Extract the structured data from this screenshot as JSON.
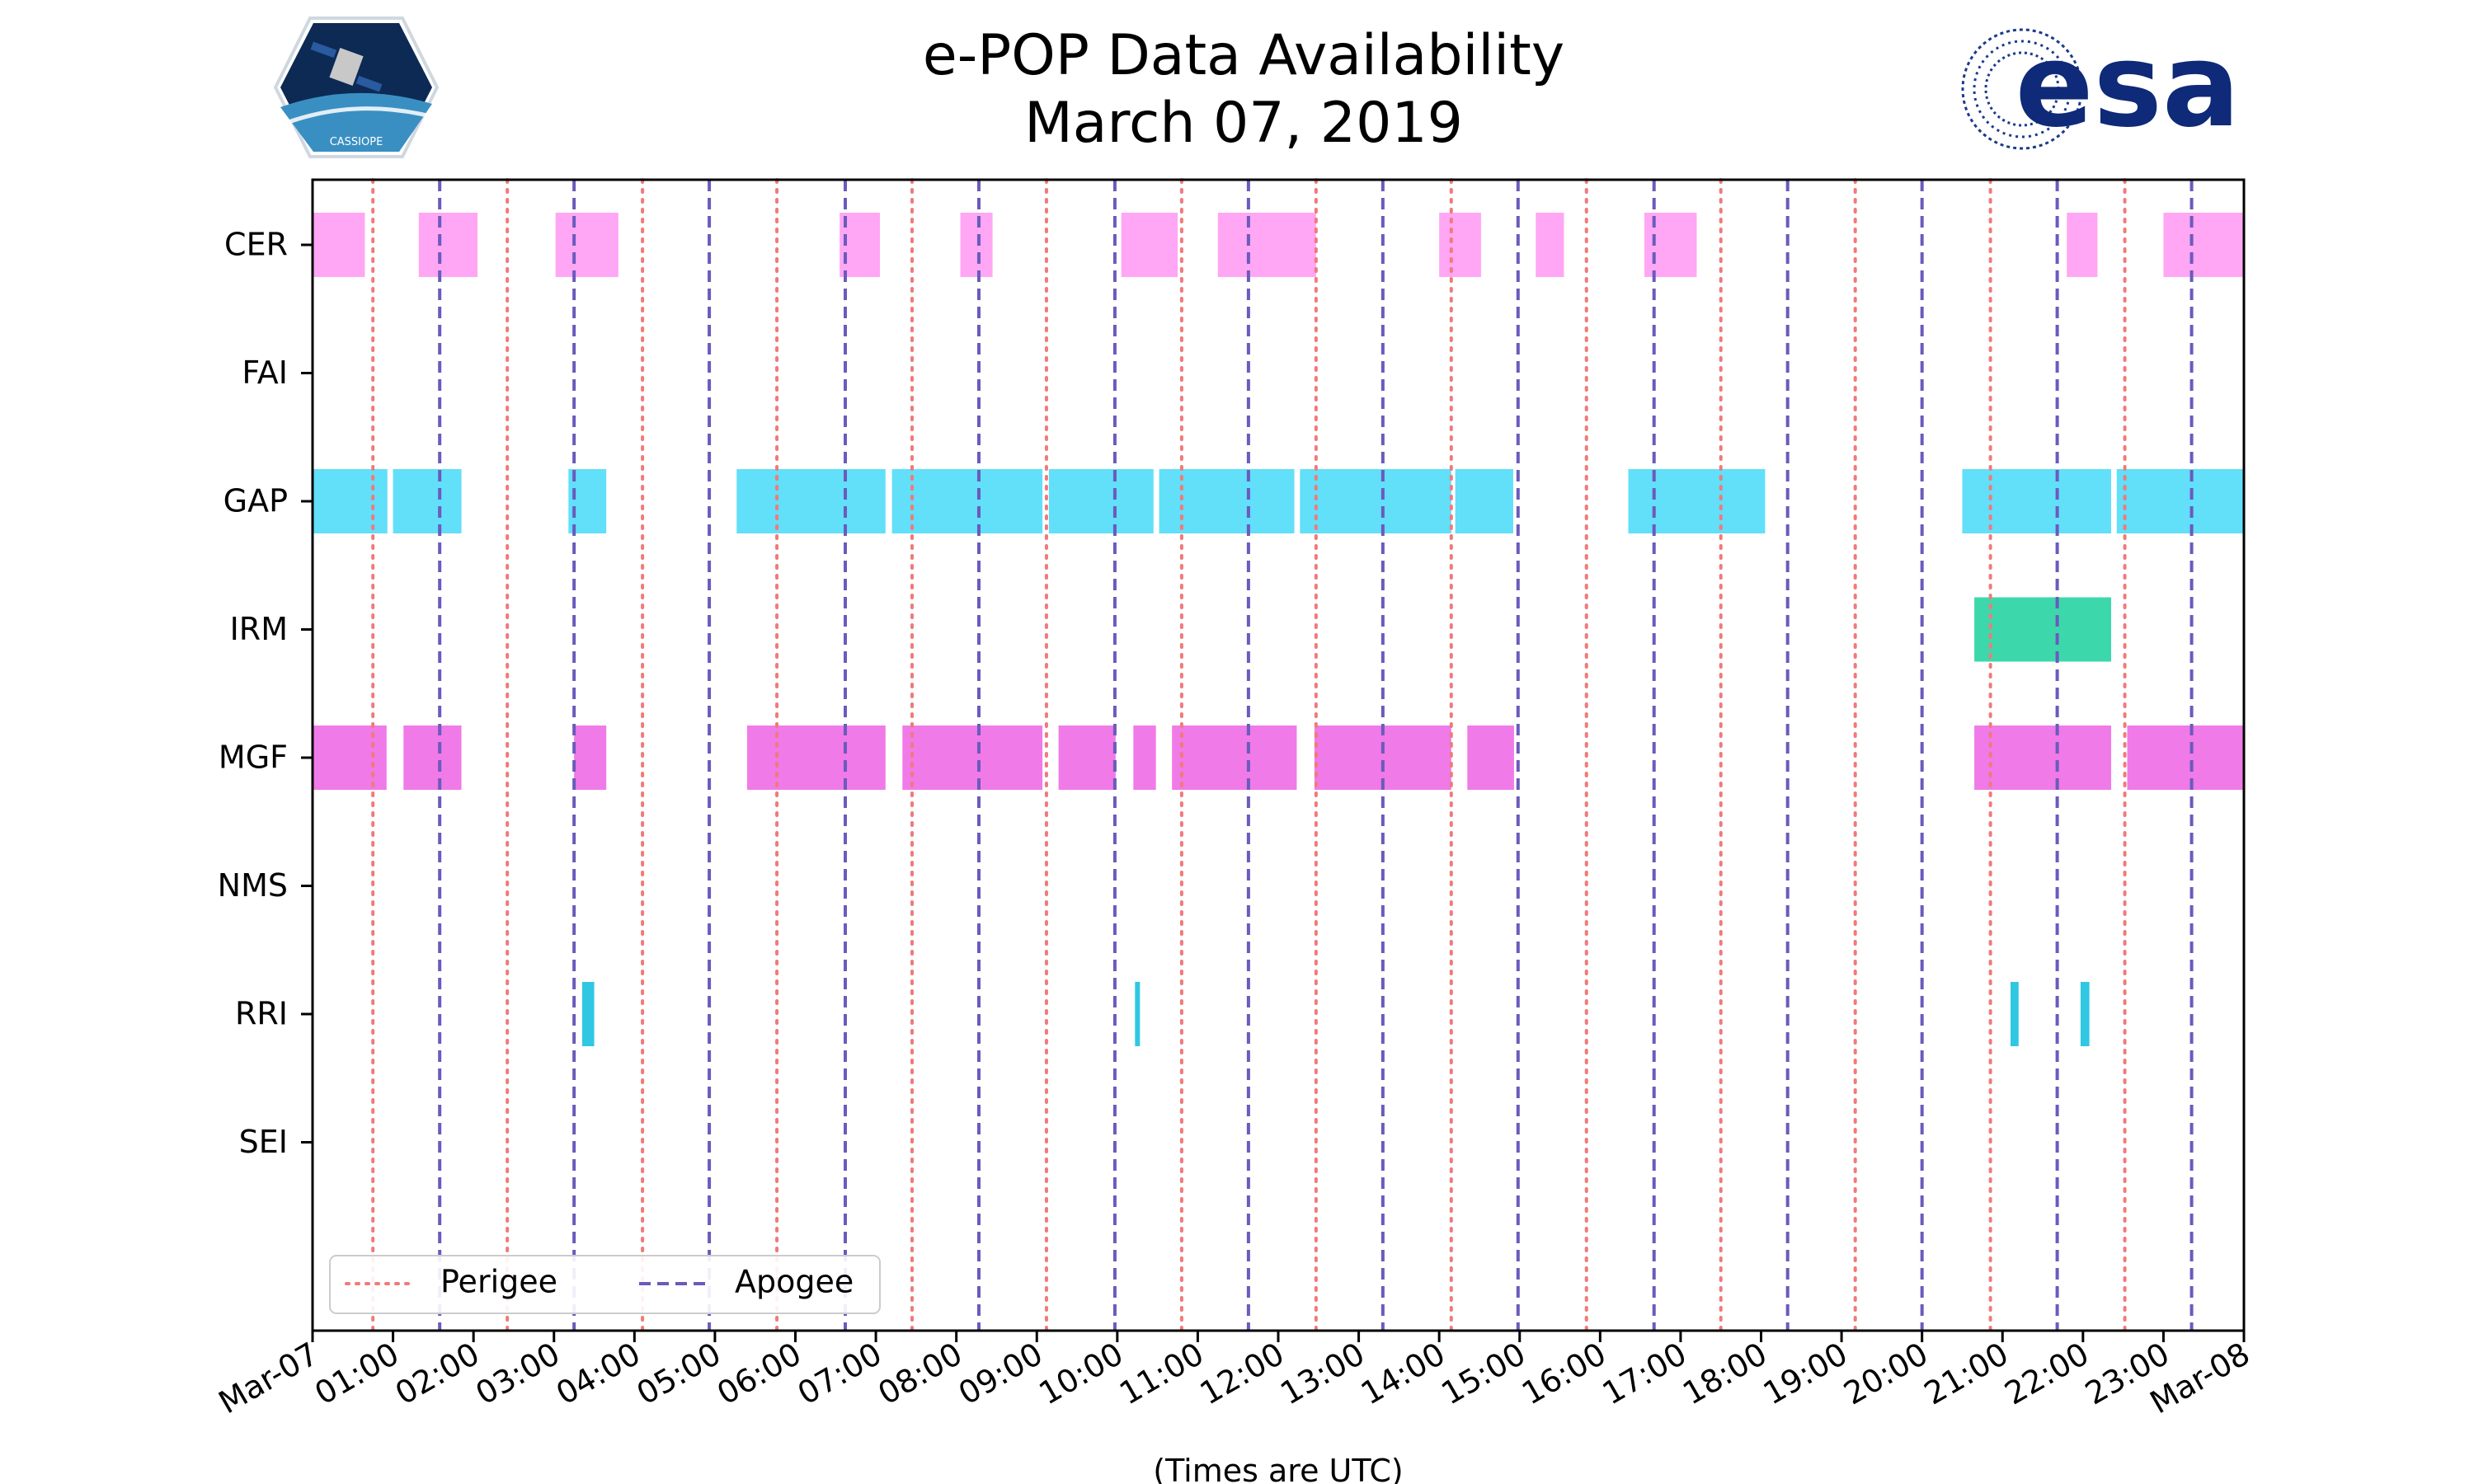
{
  "chart_data": {
    "type": "timeline",
    "title": [
      "e-POP Data Availability",
      "March 07, 2019"
    ],
    "xlabel": "(Times are UTC)",
    "xlim_hours": [
      0,
      24
    ],
    "xtick_labels": [
      "Mar-07",
      "01:00",
      "02:00",
      "03:00",
      "04:00",
      "05:00",
      "06:00",
      "07:00",
      "08:00",
      "09:00",
      "10:00",
      "11:00",
      "12:00",
      "13:00",
      "14:00",
      "15:00",
      "16:00",
      "17:00",
      "18:00",
      "19:00",
      "20:00",
      "21:00",
      "22:00",
      "23:00",
      "Mar-08"
    ],
    "instruments": [
      "CER",
      "FAI",
      "GAP",
      "IRM",
      "MGF",
      "NMS",
      "RRI",
      "SEI"
    ],
    "colors": {
      "CER": "#ffa6f4",
      "GAP": "#62dff9",
      "IRM": "#3cd8ab",
      "MGF": "#f07ae7",
      "RRI": "#30c7e3",
      "perigee": "#f07a7a",
      "apogee": "#6a5bbd"
    },
    "intervals": {
      "CER": [
        [
          0.0,
          0.65
        ],
        [
          1.32,
          2.05
        ],
        [
          3.02,
          3.8
        ],
        [
          6.55,
          7.05
        ],
        [
          8.05,
          8.45
        ],
        [
          10.05,
          10.75
        ],
        [
          11.25,
          12.47
        ],
        [
          14.0,
          14.52
        ],
        [
          15.2,
          15.55
        ],
        [
          16.55,
          17.2
        ],
        [
          21.8,
          22.18
        ],
        [
          23.0,
          24.0
        ]
      ],
      "FAI": [],
      "GAP": [
        [
          0.0,
          0.93
        ],
        [
          1.0,
          1.85
        ],
        [
          3.18,
          3.65
        ],
        [
          5.27,
          7.12
        ],
        [
          7.2,
          9.07
        ],
        [
          9.15,
          10.45
        ],
        [
          10.52,
          12.2
        ],
        [
          12.27,
          14.15
        ],
        [
          14.2,
          14.92
        ],
        [
          16.35,
          18.05
        ],
        [
          20.5,
          22.35
        ],
        [
          22.42,
          24.0
        ]
      ],
      "IRM": [
        [
          20.65,
          22.35
        ]
      ],
      "MGF": [
        [
          0.0,
          0.92
        ],
        [
          1.13,
          1.85
        ],
        [
          3.25,
          3.65
        ],
        [
          5.4,
          7.12
        ],
        [
          7.33,
          9.07
        ],
        [
          9.27,
          9.98
        ],
        [
          10.2,
          10.48
        ],
        [
          10.68,
          12.23
        ],
        [
          12.45,
          14.15
        ],
        [
          14.35,
          14.93
        ],
        [
          20.65,
          22.35
        ],
        [
          22.55,
          24.0
        ]
      ],
      "NMS": [],
      "RRI": [
        [
          3.35,
          3.5
        ],
        [
          10.22,
          10.28
        ],
        [
          21.1,
          21.2
        ],
        [
          21.97,
          22.08
        ]
      ],
      "SEI": []
    },
    "perigee_hours": [
      0.75,
      2.42,
      4.1,
      5.77,
      7.45,
      9.12,
      10.8,
      12.47,
      14.15,
      15.83,
      17.5,
      19.17,
      20.85,
      22.52
    ],
    "apogee_hours": [
      1.58,
      3.25,
      4.93,
      6.62,
      8.28,
      9.97,
      11.63,
      13.3,
      14.98,
      16.67,
      18.33,
      20.0,
      21.68,
      23.35
    ],
    "legend": {
      "perigee": "Perigee",
      "apogee": "Apogee",
      "location": "lower-left"
    }
  },
  "logos": {
    "left": "CASSIOPE",
    "right": "esa"
  }
}
